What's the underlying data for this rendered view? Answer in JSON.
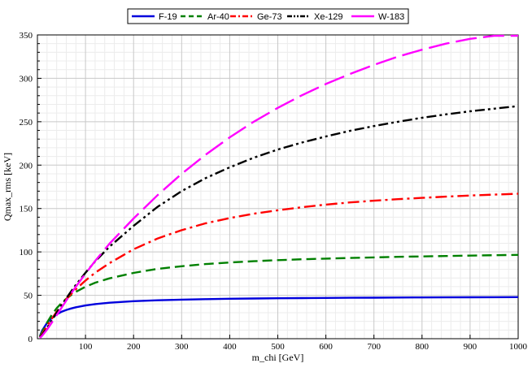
{
  "chart_data": {
    "type": "line",
    "xlabel": "m_chi [GeV]",
    "ylabel": "Qmax_rms [keV]",
    "xlim": [
      0,
      1000
    ],
    "ylim": [
      0,
      350
    ],
    "x_ticks": [
      100,
      200,
      300,
      400,
      500,
      600,
      700,
      800,
      900,
      1000
    ],
    "y_ticks": [
      0,
      50,
      100,
      150,
      200,
      250,
      300,
      350
    ],
    "grid": true,
    "legend_position": "top-center",
    "x": [
      5,
      10,
      20,
      30,
      40,
      50,
      60,
      70,
      80,
      100,
      120,
      150,
      200,
      250,
      300,
      350,
      400,
      450,
      500,
      550,
      600,
      650,
      700,
      750,
      800,
      850,
      900,
      950,
      1000
    ],
    "series": [
      {
        "name": "F-19",
        "color": "#0000dd",
        "dash": "solid",
        "values": [
          2.8,
          9.5,
          18.2,
          24.0,
          28.0,
          31.0,
          33.1,
          34.8,
          36.2,
          38.3,
          39.9,
          41.5,
          43.2,
          44.3,
          45.0,
          45.6,
          46.0,
          46.3,
          46.6,
          46.8,
          47.0,
          47.2,
          47.3,
          47.4,
          47.5,
          47.6,
          47.7,
          47.8,
          47.9
        ]
      },
      {
        "name": "Ar-40",
        "color": "#008000",
        "dash": "dash",
        "values": [
          2.5,
          8.0,
          18.5,
          27.5,
          35.0,
          41.0,
          46.0,
          50.3,
          54.0,
          59.8,
          64.5,
          69.5,
          75.8,
          80.5,
          83.5,
          86.0,
          87.8,
          89.3,
          90.5,
          91.5,
          92.3,
          93.0,
          93.7,
          94.3,
          94.8,
          95.3,
          95.7,
          96.2,
          96.6
        ]
      },
      {
        "name": "Ge-73",
        "color": "#ff0000",
        "dash": "dashdot",
        "values": [
          1.5,
          5.5,
          14.5,
          23.0,
          31.0,
          38.5,
          45.5,
          51.5,
          57.0,
          67.0,
          76.0,
          87.0,
          103.0,
          115.5,
          125.0,
          133.0,
          139.0,
          144.0,
          148.0,
          151.5,
          154.5,
          157.0,
          159.0,
          160.8,
          162.3,
          163.7,
          165.0,
          166.0,
          167.0
        ]
      },
      {
        "name": "Xe-129",
        "color": "#000000",
        "dash": "dashdotdot",
        "values": [
          1.2,
          4.5,
          12.5,
          21.0,
          30.0,
          38.5,
          46.5,
          54.5,
          62.0,
          76.0,
          89.0,
          106.0,
          130.0,
          152.0,
          170.0,
          185.0,
          197.5,
          208.5,
          218.0,
          226.0,
          233.0,
          239.5,
          245.0,
          250.0,
          254.5,
          258.5,
          262.0,
          265.0,
          268.0
        ]
      },
      {
        "name": "W-183",
        "color": "#ff00ff",
        "dash": "longdash",
        "values": [
          0.8,
          3.5,
          10.5,
          18.5,
          27.0,
          35.5,
          44.0,
          52.0,
          60.0,
          75.0,
          89.5,
          109.5,
          138.5,
          165.5,
          190.0,
          212.0,
          232.0,
          250.0,
          266.0,
          280.5,
          293.5,
          305.0,
          315.5,
          325.0,
          333.0,
          340.0,
          345.5,
          349.0,
          349.0
        ]
      }
    ]
  }
}
